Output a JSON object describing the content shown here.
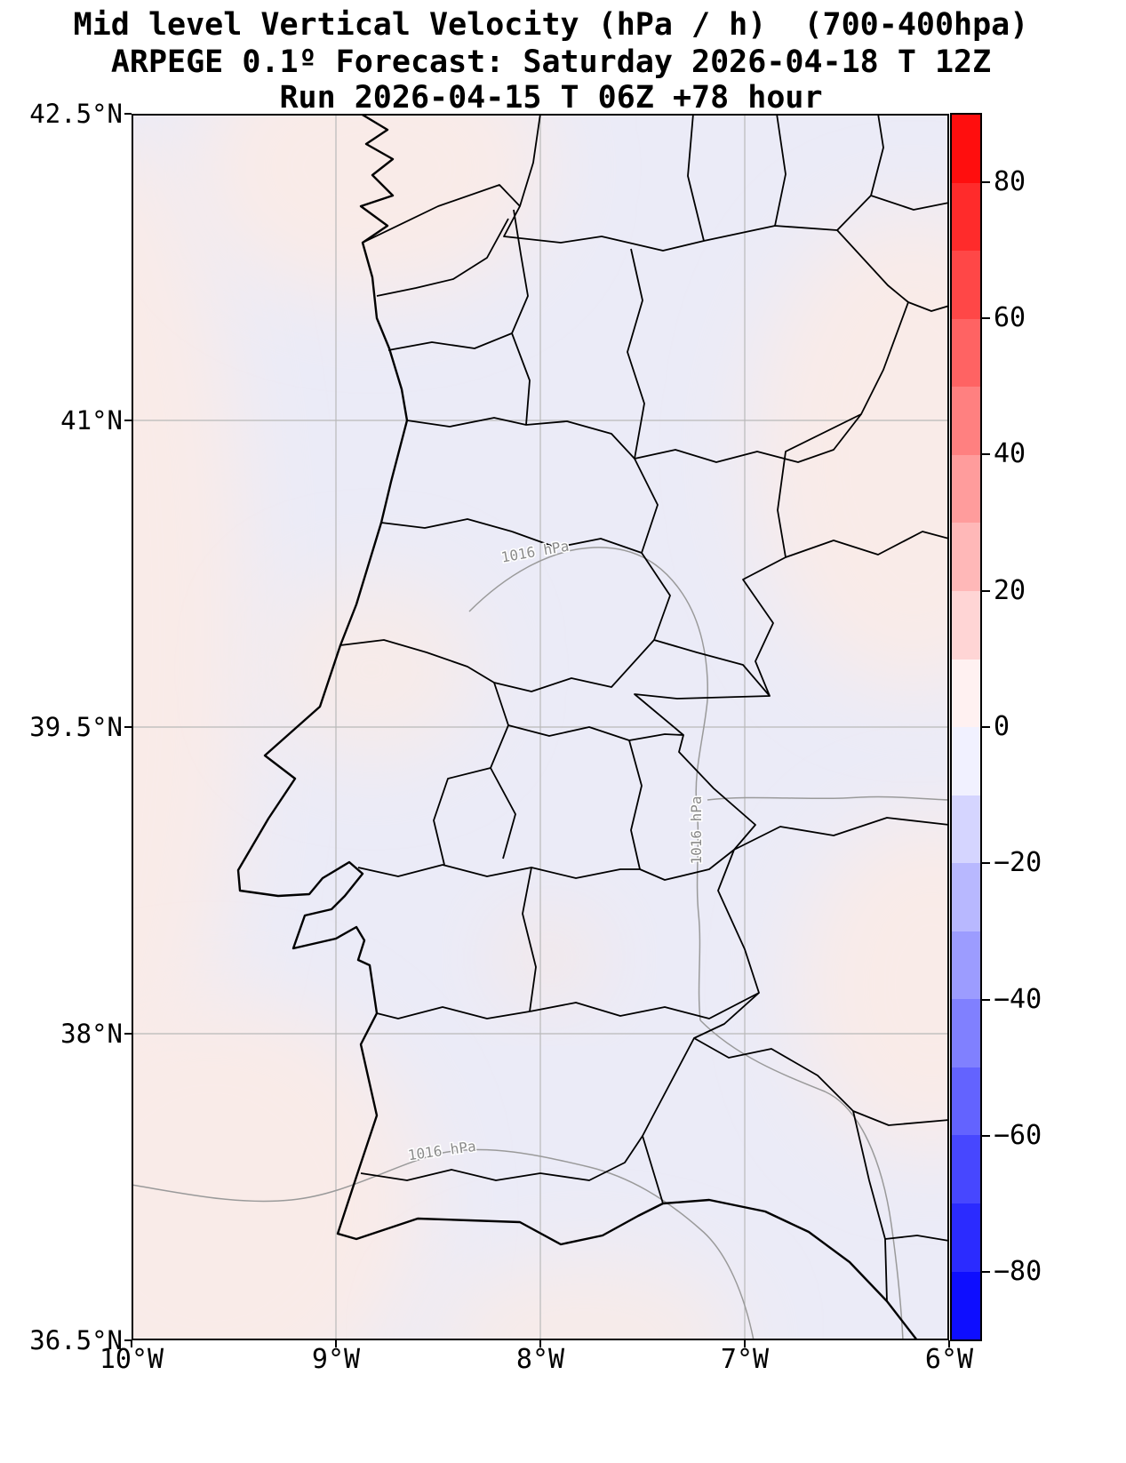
{
  "figure": {
    "title_line1": "Mid level Vertical Velocity (hPa / h)  (700-400hpa)",
    "title_line2": "ARPEGE 0.1º Forecast: Saturday 2026-04-18 T 12Z",
    "title_line3": "Run 2026-04-15 T 06Z +78 hour"
  },
  "axes": {
    "x_ticks": [
      "10°W",
      "9°W",
      "8°W",
      "7°W",
      "6°W"
    ],
    "y_ticks": [
      "42.5°N",
      "41°N",
      "39.5°N",
      "38°N",
      "36.5°N"
    ]
  },
  "colorbar": {
    "tick_labels": [
      "80",
      "60",
      "40",
      "20",
      "0",
      "−20",
      "−40",
      "−60",
      "−80"
    ],
    "range_min": -90,
    "range_max": 90,
    "band_step": 10,
    "bands_top_to_bottom": [
      "#ff0e0e",
      "#ff2b2b",
      "#ff4747",
      "#ff6363",
      "#ff8080",
      "#ff9c9c",
      "#ffb8b8",
      "#ffd5d5",
      "#fff1f1",
      "#f1f1ff",
      "#d5d5ff",
      "#b8b8ff",
      "#9c9cff",
      "#8080ff",
      "#6363ff",
      "#4747ff",
      "#2b2bff",
      "#0e0eff"
    ]
  },
  "map": {
    "isobar_labels": [
      "1016 hPa",
      "1016 hPa",
      "1016 hPa"
    ],
    "field_positive_color": "#f9ebe8",
    "field_negative_color": "#ebebf7"
  },
  "chart_data": {
    "type": "heatmap",
    "title": "Mid level Vertical Velocity (hPa / h)  (700-400hpa)",
    "subtitle_forecast": "ARPEGE 0.1º Forecast: Saturday 2026-04-18 T 12Z",
    "subtitle_run": "Run 2026-04-15 T 06Z +78 hour",
    "units": "hPa / h",
    "layer": "700-400 hPa",
    "xlabel": "",
    "ylabel": "",
    "x_tick_labels": [
      "10°W",
      "9°W",
      "8°W",
      "7°W",
      "6°W"
    ],
    "y_tick_labels": [
      "42.5°N",
      "41°N",
      "39.5°N",
      "38°N",
      "36.5°N"
    ],
    "lon_range_deg": [
      -10,
      -6
    ],
    "lat_range_deg": [
      36.5,
      42.5
    ],
    "grid": true,
    "colorbar": {
      "position": "right",
      "ticks": [
        80,
        60,
        40,
        20,
        0,
        -20,
        -40,
        -60,
        -80
      ],
      "min": -90,
      "max": 90,
      "band_step": 10,
      "colormap": "blue-white-red diverging"
    },
    "isobar_contours_hpa": [
      1016,
      1016,
      1016
    ],
    "field_values_visible_range": [
      -10,
      10
    ]
  }
}
